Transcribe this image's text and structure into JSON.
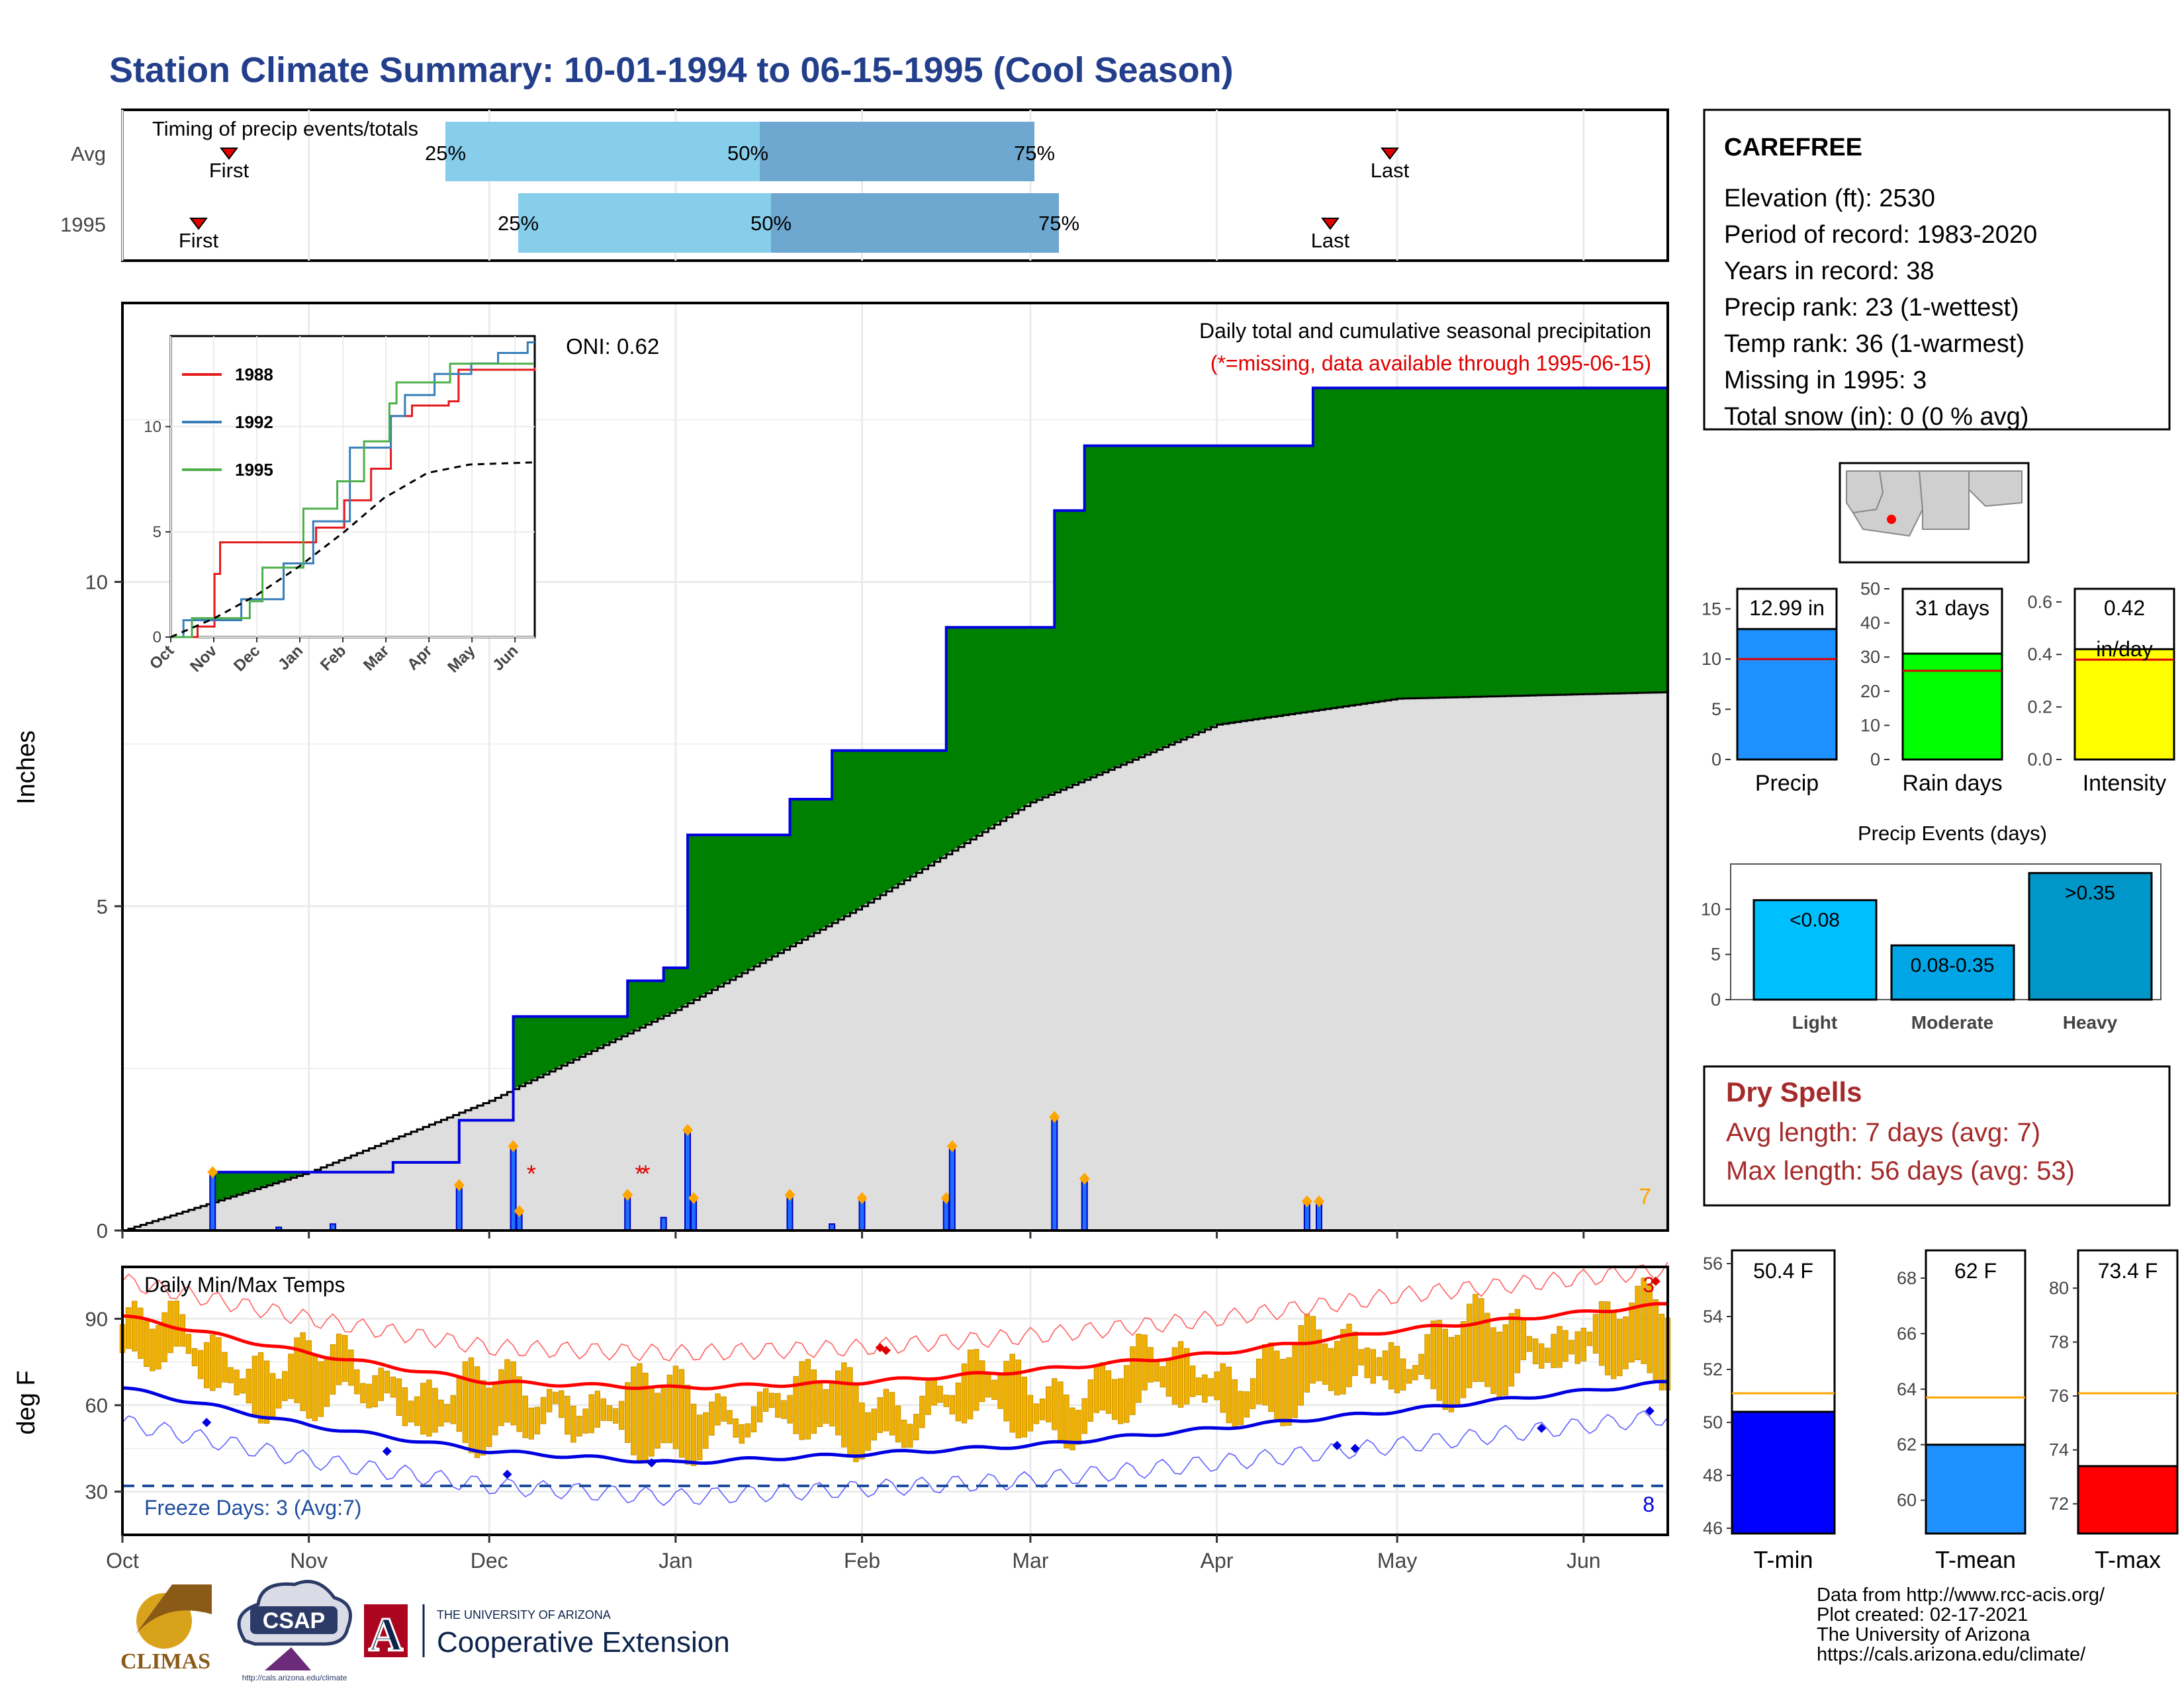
{
  "title": "Station Climate Summary: 10-01-1994 to 06-15-1995 (Cool Season)",
  "timing_panel": {
    "label": "Timing of precip events/totals",
    "rows": [
      {
        "name": "Avg",
        "first": "First",
        "last": "Last",
        "p25": "25%",
        "p50": "50%",
        "p75": "75%"
      },
      {
        "name": "1995",
        "first": "First",
        "last": "Last",
        "p25": "25%",
        "p50": "50%",
        "p75": "75%"
      }
    ]
  },
  "precip_panel": {
    "ylabel": "Inches",
    "y_ticks": [
      "0",
      "5",
      "10"
    ],
    "oni": "ONI: 0.62",
    "caption": "Daily total and cumulative seasonal precipitation",
    "missing_note": "(*=missing, data available through 1995-06-15)",
    "corner_count": "7"
  },
  "inset": {
    "legend": [
      "1988",
      "1992",
      "1995"
    ],
    "colors": [
      "#e41a1c",
      "#377eb8",
      "#4daf4a"
    ],
    "y_ticks": [
      "0",
      "5",
      "10"
    ],
    "x_ticks": [
      "Oct",
      "Nov",
      "Dec",
      "Jan",
      "Feb",
      "Mar",
      "Apr",
      "May",
      "Jun"
    ]
  },
  "temp_panel": {
    "ylabel": "deg F",
    "label": "Daily Min/Max Temps",
    "y_ticks": [
      "30",
      "60",
      "90"
    ],
    "freeze": "Freeze Days: 3 (Avg:7)",
    "top_count": "3",
    "bottom_count": "8"
  },
  "x_months": [
    "Oct",
    "Nov",
    "Dec",
    "Jan",
    "Feb",
    "Mar",
    "Apr",
    "May",
    "Jun"
  ],
  "station": {
    "name": "CAREFREE",
    "lines": [
      "Elevation (ft): 2530",
      "Period of record: 1983-2020",
      "Years in record: 38",
      "Precip rank: 23 (1-wettest)",
      "Temp rank: 36 (1-warmest)",
      "Missing in 1995: 3",
      "Total snow (in): 0 (0 % avg)"
    ]
  },
  "mini_bars": [
    {
      "label": "Precip",
      "value_text": "12.99 in",
      "ticks": [
        "0",
        "5",
        "10",
        "15"
      ],
      "color": "#1e90ff"
    },
    {
      "label": "Rain days",
      "value_text": "31 days",
      "ticks": [
        "0",
        "10",
        "20",
        "30",
        "40",
        "50"
      ],
      "color": "#00ff00"
    },
    {
      "label": "Intensity",
      "value_text": "0.42",
      "value_text2": "in/day",
      "ticks": [
        "0.0",
        "0.2",
        "0.4",
        "0.6"
      ],
      "color": "#ffff00"
    }
  ],
  "events": {
    "title": "Precip Events (days)",
    "ticks": [
      "0",
      "5",
      "10"
    ],
    "bars": [
      {
        "cat": "Light",
        "label": "<0.08"
      },
      {
        "cat": "Moderate",
        "label": "0.08-0.35"
      },
      {
        "cat": "Heavy",
        "label": ">0.35"
      }
    ]
  },
  "dry_spells": {
    "title": "Dry Spells",
    "avg": "Avg length: 7 days (avg: 7)",
    "max": "Max length: 56 days (avg: 53)"
  },
  "temp_bars": [
    {
      "label": "T-min",
      "value_text": "50.4 F",
      "ticks": [
        "46",
        "48",
        "50",
        "52",
        "54",
        "56"
      ],
      "color": "#0000ff"
    },
    {
      "label": "T-mean",
      "value_text": "62 F",
      "ticks": [
        "60",
        "62",
        "64",
        "66",
        "68"
      ],
      "color": "#1e90ff"
    },
    {
      "label": "T-max",
      "value_text": "73.4 F",
      "ticks": [
        "72",
        "74",
        "76",
        "78",
        "80"
      ],
      "color": "#ff0000"
    }
  ],
  "credits": [
    "Data from http://www.rcc-acis.org/",
    "Plot created: 02-17-2021",
    "The University of Arizona",
    "https://cals.arizona.edu/climate/"
  ],
  "logos": {
    "climas": "CLIMAS",
    "csap": "CSAP",
    "csap_url": "http://cals.arizona.edu/climate",
    "ua_small": "THE UNIVERSITY OF ARIZONA",
    "ua_big": "Cooperative Extension",
    "ua_letter": "A"
  },
  "chart_data": {
    "type": "area",
    "x_start": "1994-10-01",
    "x_end": "1995-06-15",
    "cumulative_1995": [
      [
        "1994-10-01",
        0
      ],
      [
        "1994-10-16",
        0.9
      ],
      [
        "1994-11-15",
        1.05
      ],
      [
        "1994-11-26",
        1.7
      ],
      [
        "1994-12-05",
        3.3
      ],
      [
        "1994-12-24",
        3.85
      ],
      [
        "1994-12-30",
        4.05
      ],
      [
        "1995-01-03",
        6.1
      ],
      [
        "1995-01-20",
        6.65
      ],
      [
        "1995-01-27",
        7.4
      ],
      [
        "1995-02-15",
        9.3
      ],
      [
        "1995-03-05",
        11.1
      ],
      [
        "1995-03-10",
        12.1
      ],
      [
        "1995-04-17",
        12.99
      ]
    ],
    "average_cumulative": [
      [
        "1994-10-01",
        0
      ],
      [
        "1994-11-01",
        0.9
      ],
      [
        "1994-12-01",
        2.0
      ],
      [
        "1995-01-01",
        3.4
      ],
      [
        "1995-02-01",
        5.0
      ],
      [
        "1995-03-01",
        6.6
      ],
      [
        "1995-04-01",
        7.8
      ],
      [
        "1995-05-01",
        8.2
      ],
      [
        "1995-06-15",
        8.3
      ]
    ],
    "daily_precip": [
      [
        "1994-10-16",
        0.9
      ],
      [
        "1994-10-27",
        0.05
      ],
      [
        "1994-11-05",
        0.1
      ],
      [
        "1994-11-26",
        0.7
      ],
      [
        "1994-12-05",
        1.3
      ],
      [
        "1994-12-06",
        0.3
      ],
      [
        "1994-12-24",
        0.55
      ],
      [
        "1994-12-30",
        0.2
      ],
      [
        "1995-01-03",
        1.55
      ],
      [
        "1995-01-04",
        0.5
      ],
      [
        "1995-01-20",
        0.55
      ],
      [
        "1995-01-27",
        0.1
      ],
      [
        "1995-02-01",
        0.5
      ],
      [
        "1995-02-15",
        0.5
      ],
      [
        "1995-02-16",
        1.3
      ],
      [
        "1995-03-05",
        1.75
      ],
      [
        "1995-03-10",
        0.8
      ],
      [
        "1995-04-16",
        0.45
      ],
      [
        "1995-04-18",
        0.45
      ]
    ],
    "missing_dates": [
      "1994-12-08",
      "1994-12-26",
      "1994-12-27"
    ],
    "ylabel": "Inches",
    "ylim": [
      0,
      14.3
    ],
    "temps": {
      "avg_max": [
        [
          "1994-10-01",
          91
        ],
        [
          "1994-11-01",
          78
        ],
        [
          "1994-12-01",
          68
        ],
        [
          "1995-01-01",
          66
        ],
        [
          "1995-02-01",
          68
        ],
        [
          "1995-03-01",
          72
        ],
        [
          "1995-04-01",
          78
        ],
        [
          "1995-05-01",
          86
        ],
        [
          "1995-06-15",
          95
        ]
      ],
      "avg_min": [
        [
          "1994-10-01",
          66
        ],
        [
          "1994-11-01",
          53
        ],
        [
          "1994-12-01",
          44
        ],
        [
          "1995-01-01",
          40
        ],
        [
          "1995-02-01",
          43
        ],
        [
          "1995-03-01",
          46
        ],
        [
          "1995-04-01",
          52
        ],
        [
          "1995-05-01",
          58
        ],
        [
          "1995-06-15",
          68
        ]
      ],
      "ylim": [
        15,
        108
      ],
      "freeze_line": 32
    },
    "inset_series": [
      {
        "name": "1988",
        "points": [
          [
            "1987-10-01",
            0
          ],
          [
            "1987-10-20",
            0.5
          ],
          [
            "1987-11-01",
            3.0
          ],
          [
            "1987-11-05",
            4.5
          ],
          [
            "1987-12-15",
            4.5
          ],
          [
            "1988-01-12",
            5.2
          ],
          [
            "1988-02-01",
            6.5
          ],
          [
            "1988-02-20",
            8.0
          ],
          [
            "1988-03-05",
            10.5
          ],
          [
            "1988-03-20",
            11.0
          ],
          [
            "1988-04-15",
            11.2
          ],
          [
            "1988-04-22",
            12.7
          ],
          [
            "1988-06-15",
            12.8
          ]
        ]
      },
      {
        "name": "1992",
        "points": [
          [
            "1991-10-01",
            0
          ],
          [
            "1991-10-10",
            0.8
          ],
          [
            "1991-11-20",
            1.8
          ],
          [
            "1991-12-20",
            3.5
          ],
          [
            "1992-01-10",
            5.5
          ],
          [
            "1992-02-05",
            9.0
          ],
          [
            "1992-03-05",
            10.5
          ],
          [
            "1992-03-15",
            11.5
          ],
          [
            "1992-04-05",
            12.5
          ],
          [
            "1992-05-01",
            13.0
          ],
          [
            "1992-05-20",
            13.5
          ],
          [
            "1992-06-10",
            14.0
          ],
          [
            "1992-06-15",
            14.0
          ]
        ]
      },
      {
        "name": "1995",
        "points": [
          [
            "1994-10-01",
            0
          ],
          [
            "1994-10-16",
            0.9
          ],
          [
            "1994-11-26",
            1.7
          ],
          [
            "1994-12-05",
            3.3
          ],
          [
            "1995-01-03",
            6.1
          ],
          [
            "1995-01-27",
            7.4
          ],
          [
            "1995-02-15",
            9.3
          ],
          [
            "1995-03-05",
            11.1
          ],
          [
            "1995-03-10",
            12.1
          ],
          [
            "1995-04-17",
            12.99
          ],
          [
            "1995-06-15",
            12.99
          ]
        ]
      },
      {
        "name": "average",
        "points": [
          [
            "1994-10-01",
            0
          ],
          [
            "1994-11-01",
            0.9
          ],
          [
            "1994-12-01",
            2.0
          ],
          [
            "1995-01-01",
            3.4
          ],
          [
            "1995-02-01",
            5.0
          ],
          [
            "1995-03-01",
            6.6
          ],
          [
            "1995-04-01",
            7.8
          ],
          [
            "1995-05-01",
            8.2
          ],
          [
            "1995-06-15",
            8.3
          ]
        ]
      }
    ],
    "summary_bars": {
      "precip_in": {
        "value": 12.99,
        "avg": 10.0,
        "ylim": [
          0,
          17
        ]
      },
      "rain_days": {
        "value": 31,
        "avg": 26,
        "ylim": [
          0,
          50
        ]
      },
      "intensity": {
        "value": 0.42,
        "avg": 0.38,
        "ylim": [
          0,
          0.65
        ]
      },
      "events_days": {
        "Light": 11,
        "Moderate": 6,
        "Heavy": 14
      },
      "tmin_f": {
        "value": 50.4,
        "avg": 51.1,
        "ylim": [
          45.8,
          56.5
        ]
      },
      "tmean_f": {
        "value": 62,
        "avg": 63.7,
        "ylim": [
          58.8,
          69
        ]
      },
      "tmax_f": {
        "value": 73.4,
        "avg": 76.1,
        "ylim": [
          70.9,
          81.4
        ]
      }
    }
  }
}
